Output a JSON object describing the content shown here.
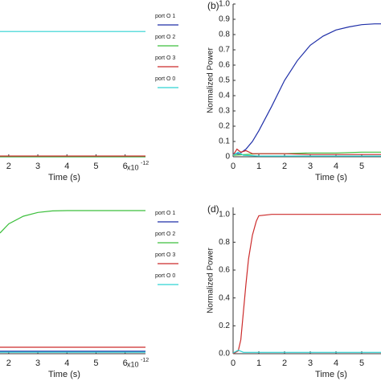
{
  "chart_data": [
    {
      "type": "line",
      "xlabel": "Time (s)",
      "x_scale": {
        "base": "x10",
        "exponent": "-12"
      },
      "xlim": [
        1.7,
        6.7
      ],
      "xticks": [
        2,
        3,
        4,
        5,
        6
      ],
      "ylim": [
        0,
        1
      ],
      "legend": "right-outside",
      "series": [
        {
          "name": "port O 1",
          "color": "#1f2fa8",
          "x": [
            1.7,
            6.7
          ],
          "values": [
            0.0,
            0.0
          ]
        },
        {
          "name": "port O 2",
          "color": "#3cbf3c",
          "x": [
            1.7,
            6.7
          ],
          "values": [
            0.0,
            0.0
          ]
        },
        {
          "name": "port O 3",
          "color": "#cc2b2b",
          "x": [
            1.7,
            6.7
          ],
          "values": [
            0.005,
            0.005
          ]
        },
        {
          "name": "port O 0",
          "color": "#2fd3d3",
          "x": [
            1.7,
            2.5,
            3.5,
            4.5,
            5.5,
            6.7
          ],
          "values": [
            0.82,
            0.82,
            0.82,
            0.82,
            0.82,
            0.82
          ]
        }
      ]
    },
    {
      "type": "line",
      "label": "(b)",
      "xlabel": "Time (s)",
      "ylabel": "Normalized Power",
      "xlim": [
        0,
        5.75
      ],
      "xticks": [
        0,
        1,
        2,
        3,
        4,
        5
      ],
      "ylim": [
        0,
        1
      ],
      "yticks": [
        0,
        0.1,
        0.2,
        0.3,
        0.4,
        0.5,
        0.6,
        0.7,
        0.8,
        0.9,
        {
          "value": 1,
          "label": "1.0"
        }
      ],
      "series": [
        {
          "color": "#1f2fa8",
          "x": [
            0,
            0.25,
            0.5,
            0.75,
            1,
            1.5,
            2,
            2.5,
            3,
            3.5,
            4,
            4.5,
            5,
            5.5,
            5.75
          ],
          "values": [
            0.02,
            0.02,
            0.05,
            0.1,
            0.17,
            0.33,
            0.5,
            0.63,
            0.73,
            0.79,
            0.83,
            0.85,
            0.865,
            0.87,
            0.87
          ]
        },
        {
          "color": "#3cbf3c",
          "x": [
            0,
            0.5,
            1,
            2,
            3,
            4,
            5,
            5.75
          ],
          "values": [
            0.01,
            0.015,
            0.02,
            0.02,
            0.025,
            0.025,
            0.03,
            0.03
          ]
        },
        {
          "color": "#cc2b2b",
          "x": [
            0,
            0.15,
            0.3,
            0.5,
            0.75,
            1,
            2,
            3,
            4,
            5,
            5.75
          ],
          "values": [
            0.01,
            0.05,
            0.03,
            0.04,
            0.02,
            0.02,
            0.02,
            0.015,
            0.015,
            0.015,
            0.015
          ]
        },
        {
          "color": "#2fd3d3",
          "x": [
            0,
            0.2,
            0.4,
            1,
            2,
            3,
            4,
            5,
            5.75
          ],
          "values": [
            0.01,
            0.03,
            0.01,
            0.005,
            0.005,
            0.005,
            0.005,
            0.005,
            0.005
          ]
        }
      ]
    },
    {
      "type": "line",
      "xlabel": "Time (s)",
      "x_scale": {
        "base": "x10",
        "exponent": "-12"
      },
      "xlim": [
        1.7,
        6.7
      ],
      "xticks": [
        2,
        3,
        4,
        5,
        6
      ],
      "ylim": [
        0,
        1
      ],
      "legend": "right-outside",
      "series": [
        {
          "name": "port O 1",
          "color": "#1f2fa8",
          "x": [
            1.7,
            6.7
          ],
          "values": [
            0.016,
            0.016
          ]
        },
        {
          "name": "port O 2",
          "color": "#3cbf3c",
          "x": [
            1.7,
            2,
            2.5,
            3,
            3.5,
            4,
            5,
            6,
            6.7
          ],
          "values": [
            0.79,
            0.85,
            0.9,
            0.925,
            0.935,
            0.937,
            0.937,
            0.937,
            0.937
          ]
        },
        {
          "name": "port O 3",
          "color": "#cc2b2b",
          "x": [
            1.7,
            6.7
          ],
          "values": [
            0.042,
            0.042
          ]
        },
        {
          "name": "port O 0",
          "color": "#2fd3d3",
          "x": [
            1.7,
            6.7
          ],
          "values": [
            0.01,
            0.01
          ]
        }
      ]
    },
    {
      "type": "line",
      "label": "(d)",
      "xlabel": "Time (s)",
      "ylabel": "Normalized Power",
      "xlim": [
        0,
        5.75
      ],
      "xticks": [
        0,
        1,
        2,
        3,
        4,
        5
      ],
      "ylim": [
        0,
        1.05
      ],
      "yticks": [
        {
          "value": 0,
          "label": "0.0"
        },
        0.2,
        0.4,
        0.6,
        0.8,
        {
          "value": 1,
          "label": "1.0"
        }
      ],
      "series": [
        {
          "color": "#cc2b2b",
          "x": [
            0,
            0.2,
            0.3,
            0.4,
            0.5,
            0.6,
            0.75,
            0.9,
            1,
            1.5,
            2,
            3,
            4,
            5,
            5.75
          ],
          "values": [
            0,
            0.02,
            0.1,
            0.3,
            0.5,
            0.68,
            0.85,
            0.95,
            0.99,
            1,
            1,
            1,
            1,
            1,
            1
          ]
        },
        {
          "color": "#2fd3d3",
          "x": [
            0,
            0.2,
            0.4,
            1,
            2,
            3,
            4,
            5,
            5.75
          ],
          "values": [
            0.005,
            0.025,
            0.01,
            0.01,
            0.01,
            0.01,
            0.01,
            0.01,
            0.01
          ]
        }
      ]
    }
  ]
}
